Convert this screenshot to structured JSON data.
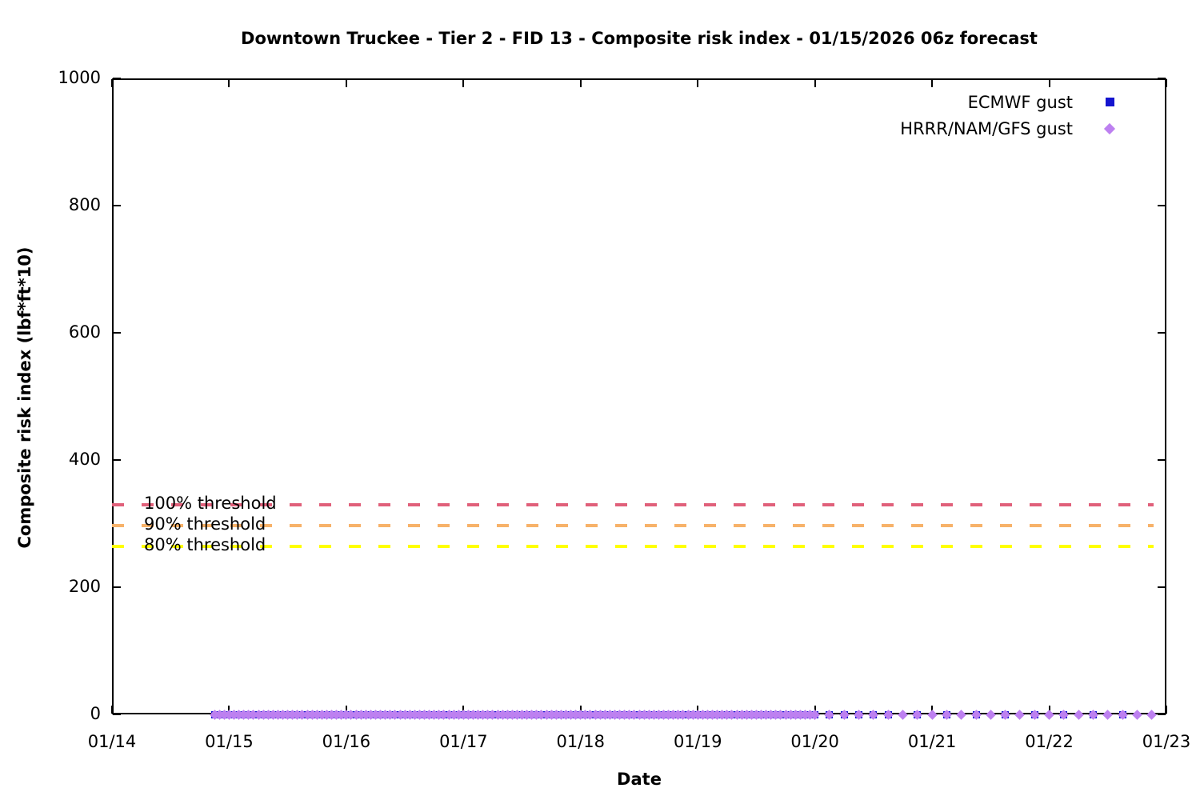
{
  "title": "Downtown Truckee - Tier 2 - FID 13 - Composite risk index - 01/15/2026 06z forecast",
  "chart_data": {
    "type": "scatter",
    "title": "Downtown Truckee - Tier 2 - FID 13 - Composite risk index - 01/15/2026 06z forecast",
    "xlabel": "Date",
    "ylabel": "Composite risk index (lbf*ft*10)",
    "x_ticks": [
      "01/14",
      "01/15",
      "01/16",
      "01/17",
      "01/18",
      "01/19",
      "01/20",
      "01/21",
      "01/22",
      "01/23"
    ],
    "y_ticks": [
      0,
      200,
      400,
      600,
      800,
      1000
    ],
    "ylim": [
      0,
      1000
    ],
    "x_span_days": 9,
    "day_zero_label": "01/14",
    "grid": false,
    "legend_position": "top-right",
    "series": [
      {
        "name": "ECMWF gust",
        "marker": "square",
        "color": "#1414cf",
        "constant_value": 0,
        "segments": [
          {
            "start_day": 0.875,
            "end_day": 6.0,
            "step_hours": 1
          },
          {
            "start_day": 6.0,
            "end_day": 6.625,
            "step_hours": 3
          },
          {
            "start_day": 6.875,
            "end_day": 8.625,
            "step_hours": 6
          }
        ]
      },
      {
        "name": "HRRR/NAM/GFS gust",
        "marker": "diamond",
        "color": "#bd80f0",
        "constant_value": 0,
        "segments": [
          {
            "start_day": 0.875,
            "end_day": 6.0,
            "step_hours": 1
          },
          {
            "start_day": 6.0,
            "end_day": 8.875,
            "step_hours": 3
          }
        ]
      }
    ],
    "thresholds": [
      {
        "label": "100% threshold",
        "value": 330,
        "color": "#e0607a"
      },
      {
        "label": "90% threshold",
        "value": 297,
        "color": "#f7b269"
      },
      {
        "label": "80% threshold",
        "value": 264,
        "color": "#ffff00"
      }
    ]
  }
}
